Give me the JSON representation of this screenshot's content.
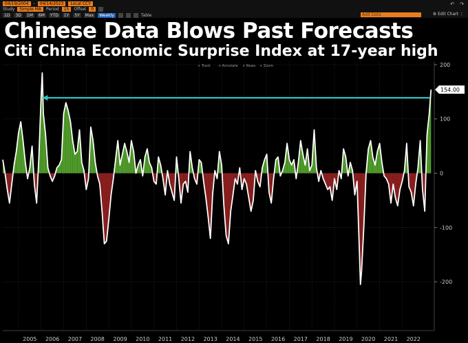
{
  "toolbar": {
    "start_date": "04/19/2004",
    "end_date": "04/14/2023",
    "currency": "Local CCY",
    "study_label": "Study",
    "study_value": "Simple MA",
    "period_label": "Period",
    "period_value": "15",
    "offset_label": "Offset",
    "offset_value": "0",
    "ranges": [
      "1D",
      "3D",
      "1M",
      "6M",
      "YTD",
      "1Y",
      "5Y",
      "Max"
    ],
    "frequency": "Weekly",
    "table_label": "Table",
    "add_data_placeholder": "Add Data",
    "edit_chart_label": "Edit Chart"
  },
  "chart_tools": [
    "Track",
    "Annotate",
    "News",
    "Zoom"
  ],
  "title": "Chinese Data Blows Past Forecasts",
  "subtitle": "Citi China Economic Surprise Index at 17-year high",
  "last_value_label": "154.00",
  "colors": {
    "background": "#000000",
    "positive_fill": "#4f9a2a",
    "negative_fill": "#8a1f1f",
    "line": "#ffffff",
    "arrow": "#2ec5c5",
    "grid": "#3a3a3a",
    "toolbar_orange": "#e87d1e"
  },
  "chart_data": {
    "type": "area",
    "title": "Chinese Data Blows Past Forecasts",
    "subtitle": "Citi China Economic Surprise Index at 17-year high",
    "x_ticks": [
      "2005",
      "2006",
      "2007",
      "2008",
      "2009",
      "2010",
      "2011",
      "2012",
      "2013",
      "2014",
      "2015",
      "2016",
      "2017",
      "2018",
      "2019",
      "2020",
      "2021",
      "2022"
    ],
    "y_ticks": [
      200,
      100,
      0,
      -100,
      -200
    ],
    "ylim": [
      -290,
      205
    ],
    "xlim": [
      2004.3,
      2023.3
    ],
    "grid": true,
    "annotation": "arrow from latest value back to 2006 peak",
    "last_value": 154.0,
    "series": [
      {
        "x": [
          2004.3,
          2004.4,
          2004.5,
          2004.6,
          2004.7,
          2004.8,
          2004.9,
          2005.0,
          2005.1,
          2005.2,
          2005.3,
          2005.4,
          2005.5,
          2005.6,
          2005.7,
          2005.8,
          2005.9,
          2006.0,
          2006.05,
          2006.1,
          2006.2,
          2006.3,
          2006.4,
          2006.5,
          2006.6,
          2006.7,
          2006.8,
          2006.9,
          2007.0,
          2007.1,
          2007.2,
          2007.3,
          2007.4,
          2007.5,
          2007.6,
          2007.7,
          2007.8,
          2007.9,
          2008.0,
          2008.1,
          2008.2,
          2008.3,
          2008.4,
          2008.5,
          2008.6,
          2008.7,
          2008.8,
          2008.9,
          2009.0,
          2009.1,
          2009.2,
          2009.3,
          2009.4,
          2009.5,
          2009.6,
          2009.7,
          2009.8,
          2009.9,
          2010.0,
          2010.1,
          2010.2,
          2010.3,
          2010.4,
          2010.5,
          2010.6,
          2010.7,
          2010.8,
          2010.9,
          2011.0,
          2011.1,
          2011.2,
          2011.3,
          2011.4,
          2011.5,
          2011.6,
          2011.7,
          2011.8,
          2011.9,
          2012.0,
          2012.1,
          2012.2,
          2012.3,
          2012.4,
          2012.5,
          2012.6,
          2012.7,
          2012.8,
          2012.9,
          2013.0,
          2013.1,
          2013.2,
          2013.3,
          2013.4,
          2013.5,
          2013.6,
          2013.7,
          2013.8,
          2013.9,
          2014.0,
          2014.1,
          2014.2,
          2014.3,
          2014.4,
          2014.5,
          2014.6,
          2014.7,
          2014.8,
          2014.9,
          2015.0,
          2015.1,
          2015.2,
          2015.3,
          2015.4,
          2015.5,
          2015.6,
          2015.7,
          2015.8,
          2015.9,
          2016.0,
          2016.1,
          2016.2,
          2016.3,
          2016.4,
          2016.5,
          2016.6,
          2016.7,
          2016.8,
          2016.9,
          2017.0,
          2017.1,
          2017.2,
          2017.3,
          2017.4,
          2017.5,
          2017.6,
          2017.7,
          2017.8,
          2017.9,
          2018.0,
          2018.1,
          2018.2,
          2018.3,
          2018.4,
          2018.5,
          2018.6,
          2018.7,
          2018.8,
          2018.9,
          2019.0,
          2019.1,
          2019.2,
          2019.3,
          2019.4,
          2019.5,
          2019.6,
          2019.7,
          2019.8,
          2019.9,
          2020.0,
          2020.05,
          2020.1,
          2020.15,
          2020.2,
          2020.3,
          2020.4,
          2020.5,
          2020.6,
          2020.7,
          2020.8,
          2020.9,
          2021.0,
          2021.1,
          2021.2,
          2021.3,
          2021.4,
          2021.5,
          2021.6,
          2021.7,
          2021.8,
          2021.9,
          2022.0,
          2022.1,
          2022.2,
          2022.3,
          2022.4,
          2022.5,
          2022.6,
          2022.7,
          2022.8,
          2022.9,
          2023.0,
          2023.1,
          2023.2,
          2023.28
        ],
        "values": [
          25,
          0,
          -30,
          -55,
          -20,
          15,
          40,
          75,
          95,
          60,
          20,
          -10,
          10,
          50,
          -20,
          -55,
          30,
          140,
          185,
          110,
          70,
          10,
          -5,
          -15,
          -5,
          10,
          15,
          25,
          110,
          130,
          115,
          95,
          60,
          35,
          40,
          80,
          20,
          5,
          -30,
          -10,
          85,
          60,
          20,
          -5,
          -20,
          -70,
          -130,
          -125,
          -85,
          -40,
          -10,
          25,
          60,
          15,
          35,
          55,
          40,
          20,
          60,
          40,
          0,
          15,
          25,
          -5,
          30,
          45,
          20,
          10,
          -15,
          -20,
          30,
          15,
          -10,
          -40,
          5,
          -20,
          -35,
          -50,
          30,
          -10,
          -55,
          -20,
          -15,
          -35,
          40,
          10,
          -10,
          -20,
          25,
          20,
          -15,
          -45,
          -80,
          -120,
          -40,
          5,
          -10,
          40,
          15,
          -60,
          -115,
          -130,
          -70,
          -40,
          -10,
          -20,
          10,
          -30,
          -10,
          -20,
          -45,
          -70,
          -50,
          5,
          -15,
          -25,
          10,
          25,
          35,
          -35,
          -55,
          -10,
          25,
          30,
          -5,
          5,
          20,
          55,
          25,
          15,
          25,
          -10,
          20,
          60,
          35,
          15,
          45,
          5,
          15,
          80,
          10,
          -15,
          5,
          -10,
          -20,
          -30,
          -25,
          -50,
          -10,
          -30,
          5,
          -10,
          45,
          30,
          -5,
          20,
          5,
          -40,
          -15,
          -75,
          -140,
          -205,
          -180,
          -100,
          0,
          45,
          60,
          30,
          15,
          40,
          55,
          20,
          -5,
          -10,
          -20,
          -55,
          -20,
          -45,
          -60,
          -30,
          -15,
          5,
          55,
          -25,
          -35,
          -60,
          -20,
          10,
          60,
          -30,
          -70,
          70,
          110,
          154
        ]
      }
    ]
  }
}
